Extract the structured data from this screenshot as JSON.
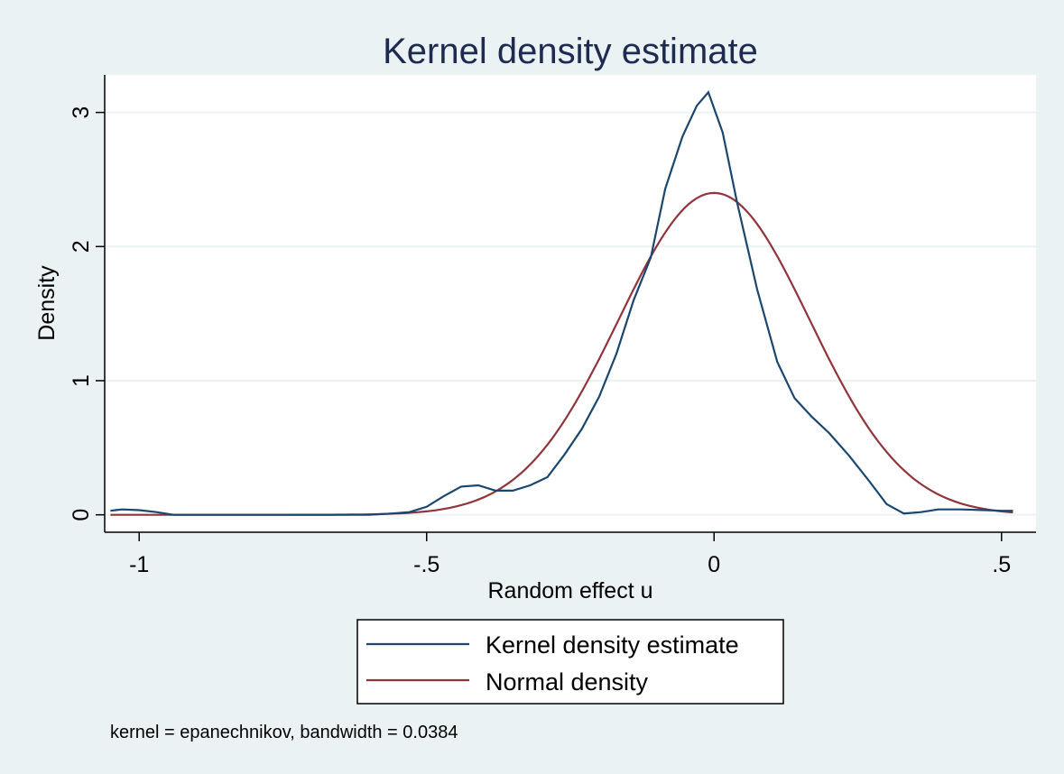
{
  "chart_data": {
    "type": "line",
    "title": "Kernel density estimate",
    "xlabel": "Random effect u",
    "ylabel": "Density",
    "xlim": [
      -1.06,
      0.56
    ],
    "ylim": [
      -0.13,
      3.28
    ],
    "x_ticks": [
      {
        "value": -1,
        "label": "-1"
      },
      {
        "value": -0.5,
        "label": "-.5"
      },
      {
        "value": 0,
        "label": "0"
      },
      {
        "value": 0.5,
        "label": ".5"
      }
    ],
    "y_ticks": [
      {
        "value": 0,
        "label": "0"
      },
      {
        "value": 1,
        "label": "1"
      },
      {
        "value": 2,
        "label": "2"
      },
      {
        "value": 3,
        "label": "3"
      }
    ],
    "grid": "horizontal",
    "legend_position": "bottom",
    "note": "kernel = epanechnikov, bandwidth = 0.0384",
    "colors": {
      "background": "#eaf2f3",
      "plot_area": "#ffffff",
      "kernel": "#1a476f",
      "normal": "#90353b",
      "grid": "#eaf2f3",
      "title": "#1e2a50"
    },
    "series": [
      {
        "name": "Kernel density estimate",
        "color": "#1a476f",
        "x": [
          -1.05,
          -1.03,
          -1.0,
          -0.97,
          -0.94,
          -0.9,
          -0.8,
          -0.7,
          -0.6,
          -0.56,
          -0.53,
          -0.5,
          -0.47,
          -0.44,
          -0.41,
          -0.38,
          -0.35,
          -0.32,
          -0.29,
          -0.26,
          -0.23,
          -0.2,
          -0.17,
          -0.14,
          -0.11,
          -0.085,
          -0.055,
          -0.03,
          -0.01,
          0.015,
          0.04,
          0.075,
          0.11,
          0.14,
          0.17,
          0.2,
          0.235,
          0.27,
          0.3,
          0.33,
          0.36,
          0.39,
          0.43,
          0.47,
          0.5,
          0.52
        ],
        "y": [
          0.03,
          0.04,
          0.035,
          0.02,
          0.0,
          0.0,
          0.0,
          0.0,
          0.0,
          0.01,
          0.02,
          0.06,
          0.14,
          0.21,
          0.22,
          0.18,
          0.18,
          0.22,
          0.28,
          0.45,
          0.64,
          0.88,
          1.2,
          1.6,
          1.92,
          2.43,
          2.82,
          3.05,
          3.15,
          2.85,
          2.33,
          1.68,
          1.14,
          0.87,
          0.73,
          0.61,
          0.44,
          0.25,
          0.08,
          0.01,
          0.02,
          0.04,
          0.04,
          0.035,
          0.03,
          0.03
        ],
        "values_note": "x/y pairs of the density curve"
      },
      {
        "name": "Normal density",
        "color": "#90353b",
        "mean": 0.0,
        "sd": 0.166,
        "peak": 2.4,
        "x_range": [
          -1.05,
          0.52
        ],
        "values_note": "normal curve N(0, 0.166^2)"
      }
    ]
  }
}
